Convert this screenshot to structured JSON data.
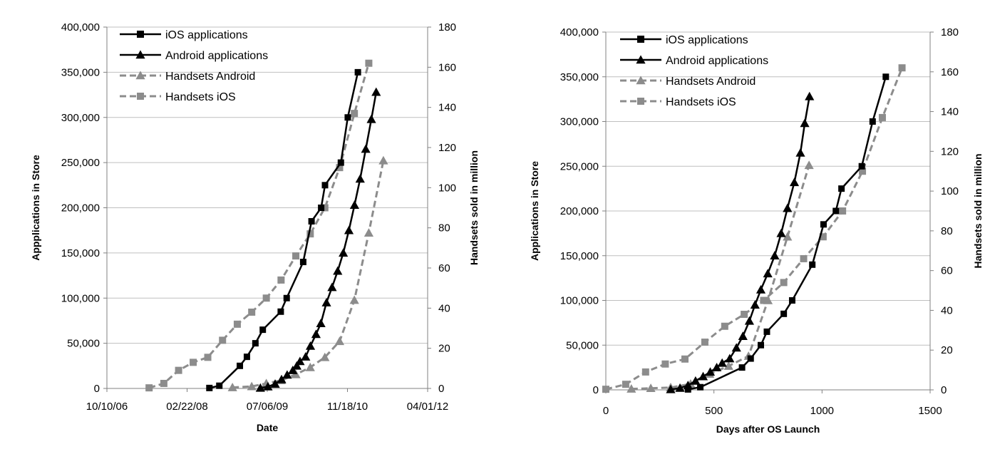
{
  "chart_data": [
    {
      "type": "line",
      "xlabel": "Date",
      "ylabel": "Appplications in Store",
      "y2label": "Handsets sold in million",
      "x_ticks": [
        "10/10/06",
        "02/22/08",
        "07/06/09",
        "11/18/10",
        "04/01/12"
      ],
      "xlim": [
        "2006-10-10",
        "2012-04-01"
      ],
      "ylim": [
        0,
        400000
      ],
      "y_ticks": [
        "0",
        "50,000",
        "100,000",
        "150,000",
        "200,000",
        "250,000",
        "300,000",
        "350,000",
        "400,000"
      ],
      "y2lim": [
        0,
        180
      ],
      "y2_ticks": [
        "0",
        "20",
        "40",
        "60",
        "80",
        "100",
        "120",
        "140",
        "160",
        "180"
      ],
      "grid": true,
      "legend_position": "top-left",
      "series": [
        {
          "name": "iOS applications",
          "axis": "left",
          "color": "#000000",
          "dash": false,
          "marker": "square",
          "points": [
            [
              "2008-07-10",
              500
            ],
            [
              "2008-09-10",
              3000
            ],
            [
              "2009-01-16",
              25000
            ],
            [
              "2009-03-01",
              35000
            ],
            [
              "2009-04-23",
              50000
            ],
            [
              "2009-06-08",
              65000
            ],
            [
              "2009-09-28",
              85000
            ],
            [
              "2009-11-04",
              100000
            ],
            [
              "2010-02-15",
              140000
            ],
            [
              "2010-04-08",
              185000
            ],
            [
              "2010-06-07",
              200000
            ],
            [
              "2010-07-01",
              225000
            ],
            [
              "2010-10-08",
              250000
            ],
            [
              "2010-11-20",
              300000
            ],
            [
              "2011-01-22",
              350000
            ]
          ]
        },
        {
          "name": "Android applications",
          "axis": "left",
          "color": "#000000",
          "dash": false,
          "marker": "triangle",
          "points": [
            [
              "2009-05-24",
              500
            ],
            [
              "2009-07-10",
              2000
            ],
            [
              "2009-08-24",
              5000
            ],
            [
              "2009-10-03",
              10000
            ],
            [
              "2009-11-07",
              15000
            ],
            [
              "2009-12-12",
              20000
            ],
            [
              "2010-01-06",
              25000
            ],
            [
              "2010-01-26",
              30000
            ],
            [
              "2010-03-02",
              35000
            ],
            [
              "2010-04-01",
              47000
            ],
            [
              "2010-05-06",
              60000
            ],
            [
              "2010-06-05",
              72000
            ],
            [
              "2010-07-10",
              95000
            ],
            [
              "2010-08-14",
              112000
            ],
            [
              "2010-09-18",
              130000
            ],
            [
              "2010-10-23",
              150000
            ],
            [
              "2010-11-27",
              175000
            ],
            [
              "2011-01-01",
              203000
            ],
            [
              "2011-02-05",
              232000
            ],
            [
              "2011-03-12",
              265000
            ],
            [
              "2011-04-16",
              298000
            ],
            [
              "2011-05-16",
              328000
            ]
          ]
        },
        {
          "name": "Handsets Android",
          "axis": "right",
          "color": "#8c8c8c",
          "dash": true,
          "marker": "triangle",
          "points": [
            [
              "2008-12-01",
              0.5
            ],
            [
              "2009-03-31",
              1
            ],
            [
              "2009-06-30",
              2.5
            ],
            [
              "2009-09-30",
              4
            ],
            [
              "2009-12-31",
              7
            ],
            [
              "2010-03-31",
              10.5
            ],
            [
              "2010-06-30",
              15.5
            ],
            [
              "2010-09-30",
              23.5
            ],
            [
              "2010-12-31",
              44
            ],
            [
              "2011-03-31",
              77.5
            ],
            [
              "2011-06-30",
              113.5
            ]
          ]
        },
        {
          "name": "Handsets iOS",
          "axis": "right",
          "color": "#8c8c8c",
          "dash": true,
          "marker": "square",
          "points": [
            [
              "2007-06-30",
              0.3
            ],
            [
              "2007-09-30",
              2.5
            ],
            [
              "2007-12-31",
              9
            ],
            [
              "2008-03-31",
              13
            ],
            [
              "2008-06-30",
              15.5
            ],
            [
              "2008-09-30",
              24
            ],
            [
              "2008-12-31",
              32
            ],
            [
              "2009-03-31",
              38
            ],
            [
              "2009-06-30",
              45
            ],
            [
              "2009-09-30",
              54
            ],
            [
              "2009-12-31",
              66
            ],
            [
              "2010-03-31",
              77
            ],
            [
              "2010-06-30",
              90
            ],
            [
              "2010-09-30",
              110
            ],
            [
              "2010-12-31",
              137
            ],
            [
              "2011-03-31",
              162
            ]
          ]
        }
      ]
    },
    {
      "type": "line",
      "xlabel": "Days after OS Launch",
      "ylabel": "Applications in Store",
      "y2label": "Handsets sold in million",
      "xlim": [
        0,
        1500
      ],
      "x_ticks": [
        "0",
        "500",
        "1000",
        "1500"
      ],
      "ylim": [
        0,
        400000
      ],
      "y_ticks": [
        "0",
        "50,000",
        "100,000",
        "150,000",
        "200,000",
        "250,000",
        "300,000",
        "350,000",
        "400,000"
      ],
      "y2lim": [
        0,
        180
      ],
      "y2_ticks": [
        "0",
        "20",
        "40",
        "60",
        "80",
        "100",
        "120",
        "140",
        "160",
        "180"
      ],
      "grid": true,
      "legend_position": "top-left",
      "series": [
        {
          "name": "iOS applications",
          "axis": "left",
          "color": "#000000",
          "dash": false,
          "marker": "square",
          "points": [
            [
              380,
              500
            ],
            [
              437,
              3000
            ],
            [
              630,
              25000
            ],
            [
              670,
              35000
            ],
            [
              717,
              50000
            ],
            [
              745,
              65000
            ],
            [
              823,
              85000
            ],
            [
              862,
              100000
            ],
            [
              955,
              140000
            ],
            [
              1007,
              185000
            ],
            [
              1064,
              200000
            ],
            [
              1090,
              225000
            ],
            [
              1184,
              250000
            ],
            [
              1234,
              300000
            ],
            [
              1295,
              350000
            ]
          ]
        },
        {
          "name": "Android applications",
          "axis": "left",
          "color": "#000000",
          "dash": false,
          "marker": "triangle",
          "points": [
            [
              300,
              500
            ],
            [
              343,
              2000
            ],
            [
              380,
              5000
            ],
            [
              415,
              10000
            ],
            [
              450,
              15000
            ],
            [
              483,
              20000
            ],
            [
              513,
              25000
            ],
            [
              538,
              30000
            ],
            [
              573,
              35000
            ],
            [
              604,
              47000
            ],
            [
              634,
              60000
            ],
            [
              664,
              77000
            ],
            [
              690,
              95000
            ],
            [
              717,
              112000
            ],
            [
              749,
              130000
            ],
            [
              781,
              150000
            ],
            [
              811,
              175000
            ],
            [
              840,
              203000
            ],
            [
              872,
              232000
            ],
            [
              900,
              265000
            ],
            [
              920,
              298000
            ],
            [
              942,
              328000
            ]
          ]
        },
        {
          "name": "Handsets Android",
          "axis": "right",
          "color": "#8c8c8c",
          "dash": true,
          "marker": "triangle",
          "points": [
            [
              118,
              0.5
            ],
            [
              208,
              0.8
            ],
            [
              300,
              1.2
            ],
            [
              392,
              3
            ],
            [
              480,
              8
            ],
            [
              568,
              12
            ],
            [
              660,
              17
            ],
            [
              750,
              45
            ],
            [
              840,
              77
            ],
            [
              940,
              113
            ]
          ]
        },
        {
          "name": "Handsets iOS",
          "axis": "right",
          "color": "#8c8c8c",
          "dash": true,
          "marker": "square",
          "points": [
            [
              0,
              0.3
            ],
            [
              92,
              2.8
            ],
            [
              184,
              9
            ],
            [
              275,
              13
            ],
            [
              366,
              15.5
            ],
            [
              458,
              24
            ],
            [
              550,
              32
            ],
            [
              640,
              38
            ],
            [
              730,
              45
            ],
            [
              823,
              54
            ],
            [
              915,
              66
            ],
            [
              1005,
              77
            ],
            [
              1095,
              90
            ],
            [
              1187,
              110
            ],
            [
              1279,
              137
            ],
            [
              1370,
              162
            ]
          ]
        }
      ]
    }
  ]
}
